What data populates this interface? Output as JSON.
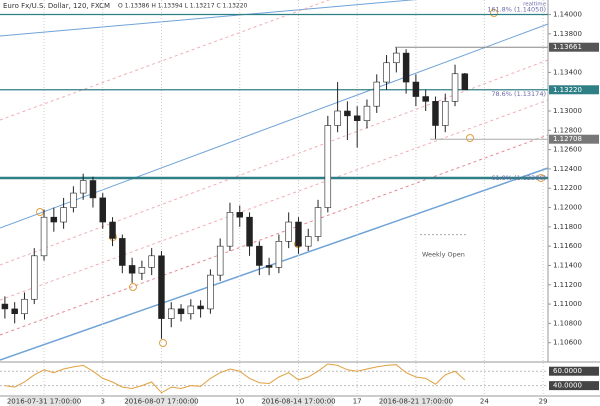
{
  "chart_data": {
    "type": "candlestick",
    "title": "Euro Fx/U.S. Dollar, 120, FXCM",
    "ohlc_text": "O 1.13386 H 1.13394 L 1.13217 C 1.13220",
    "realtime": "realtime",
    "categories": [
      null,
      null,
      null,
      null,
      "2016-07-31 17:00:00",
      null,
      null,
      null,
      null,
      null,
      "3",
      null,
      null,
      null,
      null,
      null,
      "2016-08-07 17:00:00",
      null,
      null,
      null,
      null,
      null,
      null,
      null,
      "10",
      null,
      null,
      null,
      null,
      null,
      "2016-08-14 17:00:00",
      null,
      null,
      null,
      null,
      null,
      "17",
      null,
      null,
      null,
      null,
      null,
      "2016-08-21 17:00:00",
      null,
      null,
      null,
      null,
      null,
      null,
      "24",
      null,
      null,
      null,
      null,
      null,
      "29"
    ],
    "open": [
      1.11,
      1.1095,
      1.109,
      1.1105,
      1.115,
      1.119,
      1.1185,
      1.12,
      1.1215,
      1.1228,
      1.121,
      1.1185,
      1.1168,
      1.114,
      1.1132,
      1.1138,
      1.115,
      1.1085,
      1.1095,
      1.109,
      1.1098,
      1.1095,
      1.113,
      1.116,
      1.1195,
      1.119,
      1.116,
      1.114,
      1.1138,
      1.1165,
      1.1185,
      1.116,
      1.117,
      1.12,
      1.1285,
      1.13,
      1.1295,
      1.129,
      1.1305,
      1.133,
      1.135,
      1.136,
      1.133,
      1.1315,
      1.131,
      1.1285,
      1.131,
      1.13386,
      null,
      null,
      null,
      null,
      null,
      null,
      null,
      null
    ],
    "high": [
      1.1108,
      1.1102,
      1.1112,
      1.1158,
      1.1198,
      1.12,
      1.121,
      1.1222,
      1.1235,
      1.1232,
      1.1215,
      1.119,
      1.1172,
      1.1148,
      1.1145,
      1.1158,
      1.1155,
      1.1102,
      1.11,
      1.1105,
      1.1104,
      1.1136,
      1.1168,
      1.1205,
      1.1202,
      1.1195,
      1.1165,
      1.1148,
      1.1172,
      1.1195,
      1.119,
      1.1178,
      1.1208,
      1.1295,
      1.133,
      1.131,
      1.1305,
      1.1312,
      1.1338,
      1.1358,
      1.1366,
      1.1364,
      1.1338,
      1.1322,
      1.1315,
      1.1318,
      1.1348,
      1.13394,
      null,
      null,
      null,
      null,
      null,
      null,
      null,
      null
    ],
    "low": [
      1.1085,
      1.108,
      1.1084,
      1.11,
      1.1145,
      1.1175,
      1.1178,
      1.1195,
      1.1208,
      1.12,
      1.1178,
      1.116,
      1.1132,
      1.1122,
      1.1125,
      1.113,
      1.1064,
      1.1076,
      1.1082,
      1.1084,
      1.1086,
      1.109,
      1.1124,
      1.1155,
      1.118,
      1.115,
      1.113,
      1.113,
      1.1132,
      1.1158,
      1.1152,
      1.1155,
      1.1165,
      1.1195,
      1.1278,
      1.127,
      1.1262,
      1.1282,
      1.1298,
      1.1322,
      1.134,
      1.1318,
      1.1305,
      1.13,
      1.1271,
      1.1278,
      1.1305,
      1.13217,
      null,
      null,
      null,
      null,
      null,
      null,
      null,
      null
    ],
    "close": [
      1.1095,
      1.109,
      1.1105,
      1.115,
      1.119,
      1.1185,
      1.12,
      1.1215,
      1.1228,
      1.121,
      1.1185,
      1.1168,
      1.114,
      1.1132,
      1.1138,
      1.115,
      1.1085,
      1.1095,
      1.109,
      1.1098,
      1.1095,
      1.113,
      1.116,
      1.1195,
      1.119,
      1.116,
      1.114,
      1.1138,
      1.1165,
      1.1185,
      1.116,
      1.117,
      1.12,
      1.1285,
      1.13,
      1.1295,
      1.129,
      1.1305,
      1.133,
      1.135,
      1.136,
      1.133,
      1.1315,
      1.131,
      1.1285,
      1.131,
      1.13386,
      1.1322,
      null,
      null,
      null,
      null,
      null,
      null,
      null,
      null
    ],
    "ylim": [
      1.104,
      1.1415
    ],
    "yticks": [
      {
        "value": 1.14,
        "label": "1.14000"
      },
      {
        "value": 1.138,
        "label": "1.13800"
      },
      {
        "value": 1.134,
        "label": "1.13400"
      },
      {
        "value": 1.13,
        "label": "1.13000"
      },
      {
        "value": 1.128,
        "label": "1.12800"
      },
      {
        "value": 1.126,
        "label": "1.12600"
      },
      {
        "value": 1.124,
        "label": "1.12400"
      },
      {
        "value": 1.122,
        "label": "1.12200"
      },
      {
        "value": 1.12,
        "label": "1.12000"
      },
      {
        "value": 1.118,
        "label": "1.11800"
      },
      {
        "value": 1.116,
        "label": "1.11600"
      },
      {
        "value": 1.114,
        "label": "1.11400"
      },
      {
        "value": 1.112,
        "label": "1.11200"
      },
      {
        "value": 1.11,
        "label": "1.11000"
      },
      {
        "value": 1.108,
        "label": "1.10800"
      },
      {
        "value": 1.106,
        "label": "1.10600"
      }
    ],
    "price_labels": [
      {
        "value": 1.13661,
        "label": "1.13661",
        "color": "#555555"
      },
      {
        "value": 1.1322,
        "label": "1.13220",
        "color": "#2f7f86"
      },
      {
        "value": 1.12708,
        "label": "1.12708",
        "color": "#777777"
      }
    ],
    "levels": [
      {
        "value": 1.14,
        "color": "#2f7f86"
      },
      {
        "value": 1.1322,
        "color": "#2f7f86"
      },
      {
        "value": 1.12306,
        "color": "#2f7f86"
      }
    ],
    "annotations": [
      {
        "value": 1.1405,
        "label": "161.8% (1.14050)"
      },
      {
        "value": 1.13174,
        "label": "78.6% (1.13174)"
      },
      {
        "value": 1.12306,
        "label": "61.8% (1.12306)"
      }
    ],
    "weekly_open": {
      "value": 1.1172,
      "label": "Weekly Open"
    },
    "rsi": [
      40,
      38,
      45,
      55,
      62,
      58,
      63,
      66,
      68,
      60,
      50,
      45,
      38,
      36,
      40,
      45,
      30,
      38,
      36,
      40,
      39,
      50,
      58,
      63,
      60,
      50,
      44,
      43,
      52,
      58,
      48,
      52,
      60,
      70,
      68,
      62,
      60,
      63,
      66,
      68,
      69,
      58,
      52,
      50,
      42,
      55,
      60,
      48
    ],
    "rsi_ylim": [
      27,
      70
    ],
    "rsi_ticks": [
      {
        "value": 60,
        "label": "60.0000"
      },
      {
        "value": 40,
        "label": "40.0000"
      }
    ]
  }
}
